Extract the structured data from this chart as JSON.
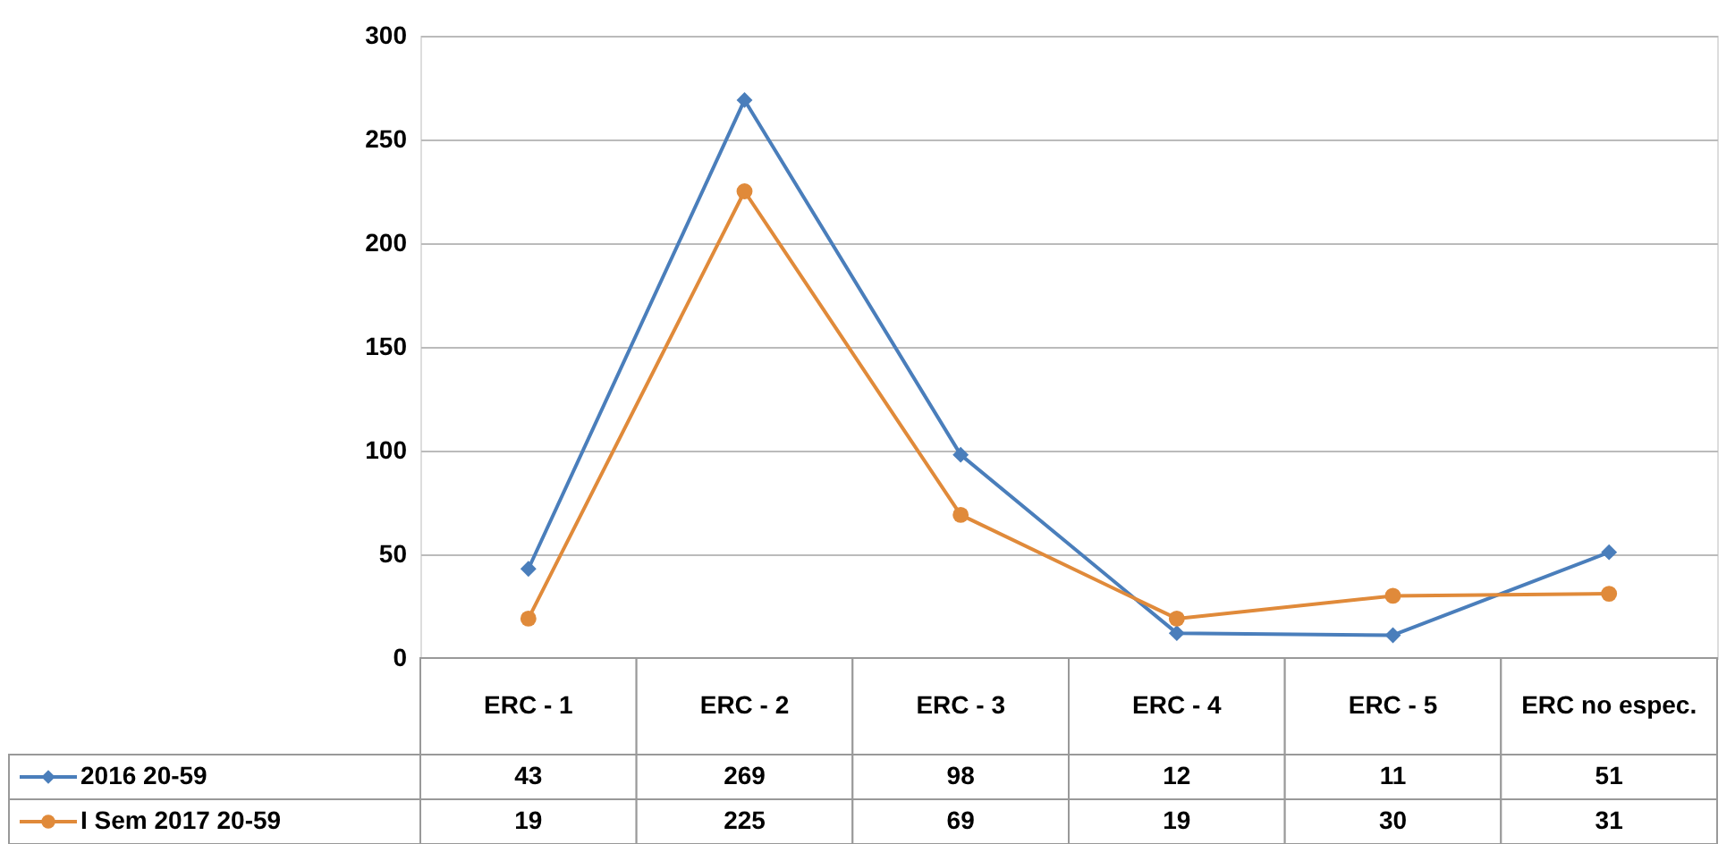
{
  "chart_data": {
    "type": "line",
    "categories": [
      "ERC - 1",
      "ERC - 2",
      "ERC - 3",
      "ERC - 4",
      "ERC - 5",
      "ERC no espec."
    ],
    "series": [
      {
        "name": "2016 20-59",
        "color": "#4a7ebb",
        "marker": "diamond",
        "values": [
          43,
          269,
          98,
          12,
          11,
          51
        ]
      },
      {
        "name": "I Sem 2017 20-59",
        "color": "#e08a3a",
        "marker": "circle",
        "values": [
          19,
          225,
          69,
          19,
          30,
          31
        ]
      }
    ],
    "ylim": [
      0,
      300
    ],
    "yticks": [
      0,
      50,
      100,
      150,
      200,
      250,
      300
    ],
    "grid": "y",
    "data_labels": true,
    "legend": "bottom left"
  }
}
